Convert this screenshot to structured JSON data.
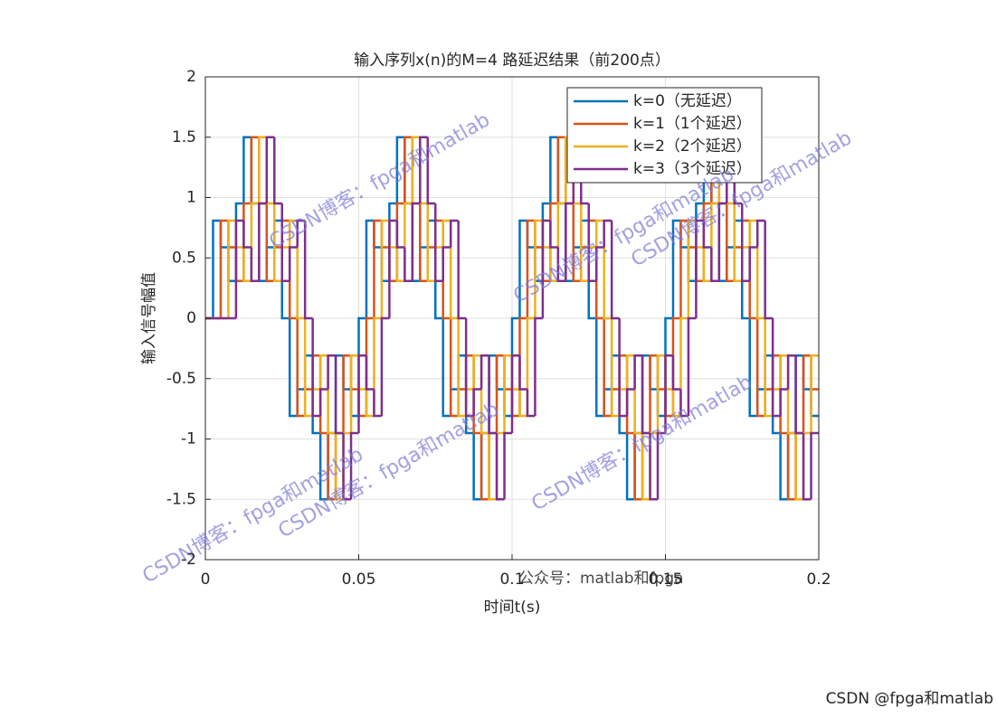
{
  "chart_data": {
    "type": "stairs",
    "title": "输入序列x(n)的M=4 路延迟结果（前200点）",
    "x_label": "时间t(s)",
    "y_label": "输入信号幅值",
    "xlim": [
      0,
      0.2
    ],
    "ylim": [
      -2,
      2
    ],
    "xticks": [
      0,
      0.05,
      0.1,
      0.15,
      0.2
    ],
    "yticks": [
      -2,
      -1.5,
      -1,
      -0.5,
      0,
      0.5,
      1,
      1.5,
      2
    ],
    "grid": true,
    "legend": "upper-right",
    "x": [
      0,
      0.0025,
      0.005,
      0.0075,
      0.01,
      0.0125,
      0.015,
      0.0175,
      0.02,
      0.0225,
      0.025,
      0.0275,
      0.03,
      0.0325,
      0.035,
      0.0375,
      0.04,
      0.0425,
      0.045,
      0.0475,
      0.05,
      0.0525,
      0.055,
      0.0575,
      0.06,
      0.0625,
      0.065,
      0.0675,
      0.07,
      0.0725,
      0.075,
      0.0775,
      0.08,
      0.0825,
      0.085,
      0.0875,
      0.09,
      0.0925,
      0.095,
      0.0975,
      0.1,
      0.1025,
      0.105,
      0.1075,
      0.11,
      0.1125,
      0.115,
      0.1175,
      0.12,
      0.1225,
      0.125,
      0.1275,
      0.13,
      0.1325,
      0.135,
      0.1375,
      0.14,
      0.1425,
      0.145,
      0.1475,
      0.15,
      0.1525,
      0.155,
      0.1575,
      0.16,
      0.1625,
      0.165,
      0.1675,
      0.17,
      0.1725,
      0.175,
      0.1775,
      0.18,
      0.1825,
      0.185,
      0.1875,
      0.19,
      0.1925,
      0.195,
      0.1975
    ],
    "series": [
      {
        "name": "k=0（无延迟）",
        "color": "#0072bd",
        "values": [
          0,
          0.809,
          0.588,
          0.309,
          0.951,
          1.5,
          0.951,
          0.309,
          0.588,
          0.809,
          0,
          -0.809,
          -0.588,
          -0.309,
          -0.951,
          -1.5,
          -0.951,
          -0.309,
          -0.588,
          -0.809,
          0,
          0.809,
          0.588,
          0.309,
          0.951,
          1.5,
          0.951,
          0.309,
          0.588,
          0.809,
          0,
          -0.809,
          -0.588,
          -0.309,
          -0.951,
          -1.5,
          -0.951,
          -0.309,
          -0.588,
          -0.809,
          0,
          0.809,
          0.588,
          0.309,
          0.951,
          1.5,
          0.951,
          0.309,
          0.588,
          0.809,
          0,
          -0.809,
          -0.588,
          -0.309,
          -0.951,
          -1.5,
          -0.951,
          -0.309,
          -0.588,
          -0.809,
          0,
          0.809,
          0.588,
          0.309,
          0.951,
          1.5,
          0.951,
          0.309,
          0.588,
          0.809,
          0,
          -0.809,
          -0.588,
          -0.309,
          -0.951,
          -1.5,
          -0.951,
          -0.309,
          -0.588,
          -0.809
        ]
      },
      {
        "name": "k=1（1个延迟）",
        "color": "#d95319",
        "values": [
          0,
          0,
          0.809,
          0.588,
          0.309,
          0.951,
          1.5,
          0.951,
          0.309,
          0.588,
          0.809,
          0,
          -0.809,
          -0.588,
          -0.309,
          -0.951,
          -1.5,
          -0.951,
          -0.309,
          -0.588,
          -0.809,
          0,
          0.809,
          0.588,
          0.309,
          0.951,
          1.5,
          0.951,
          0.309,
          0.588,
          0.809,
          0,
          -0.809,
          -0.588,
          -0.309,
          -0.951,
          -1.5,
          -0.951,
          -0.309,
          -0.588,
          -0.809,
          0,
          0.809,
          0.588,
          0.309,
          0.951,
          1.5,
          0.951,
          0.309,
          0.588,
          0.809,
          0,
          -0.809,
          -0.588,
          -0.309,
          -0.951,
          -1.5,
          -0.951,
          -0.309,
          -0.588,
          -0.809,
          0,
          0.809,
          0.588,
          0.309,
          0.951,
          1.5,
          0.951,
          0.309,
          0.588,
          0.809,
          0,
          -0.809,
          -0.588,
          -0.309,
          -0.951,
          -1.5,
          -0.951,
          -0.309,
          -0.588
        ]
      },
      {
        "name": "k=2（2个延迟）",
        "color": "#edb120",
        "values": [
          0,
          0,
          0,
          0.809,
          0.588,
          0.309,
          0.951,
          1.5,
          0.951,
          0.309,
          0.588,
          0.809,
          0,
          -0.809,
          -0.588,
          -0.309,
          -0.951,
          -1.5,
          -0.951,
          -0.309,
          -0.588,
          -0.809,
          0,
          0.809,
          0.588,
          0.309,
          0.951,
          1.5,
          0.951,
          0.309,
          0.588,
          0.809,
          0,
          -0.809,
          -0.588,
          -0.309,
          -0.951,
          -1.5,
          -0.951,
          -0.309,
          -0.588,
          -0.809,
          0,
          0.809,
          0.588,
          0.309,
          0.951,
          1.5,
          0.951,
          0.309,
          0.588,
          0.809,
          0,
          -0.809,
          -0.588,
          -0.309,
          -0.951,
          -1.5,
          -0.951,
          -0.309,
          -0.588,
          -0.809,
          0,
          0.809,
          0.588,
          0.309,
          0.951,
          1.5,
          0.951,
          0.309,
          0.588,
          0.809,
          0,
          -0.809,
          -0.588,
          -0.309,
          -0.951,
          -1.5,
          -0.951,
          -0.309
        ]
      },
      {
        "name": "k=3（3个延迟）",
        "color": "#7e2f8e",
        "values": [
          0,
          0,
          0,
          0,
          0.809,
          0.588,
          0.309,
          0.951,
          1.5,
          0.951,
          0.309,
          0.588,
          0.809,
          0,
          -0.809,
          -0.588,
          -0.309,
          -0.951,
          -1.5,
          -0.951,
          -0.309,
          -0.588,
          -0.809,
          0,
          0.809,
          0.588,
          0.309,
          0.951,
          1.5,
          0.951,
          0.309,
          0.588,
          0.809,
          0,
          -0.809,
          -0.588,
          -0.309,
          -0.951,
          -1.5,
          -0.951,
          -0.309,
          -0.588,
          -0.809,
          0,
          0.809,
          0.588,
          0.309,
          0.951,
          1.5,
          0.951,
          0.309,
          0.588,
          0.809,
          0,
          -0.809,
          -0.588,
          -0.309,
          -0.951,
          -1.5,
          -0.951,
          -0.309,
          -0.588,
          -0.809,
          0,
          0.809,
          0.588,
          0.309,
          0.951,
          1.5,
          0.951,
          0.309,
          0.588,
          0.809,
          0,
          -0.809,
          -0.588,
          -0.309,
          -0.951,
          -1.5,
          -0.951
        ]
      }
    ],
    "watermarks": [
      "CSDN博客：fpga和matlab",
      "CSDN博客：fpga和matlab",
      "CSDN博客：fpga和matlab",
      "CSDN博客：fpga和matlab",
      "CSDN博客：fpga和matlab",
      "CSDN博客：fpga和matlab",
      "公众号：matlab和fpga",
      "CSDN @fpga和matlab"
    ]
  }
}
